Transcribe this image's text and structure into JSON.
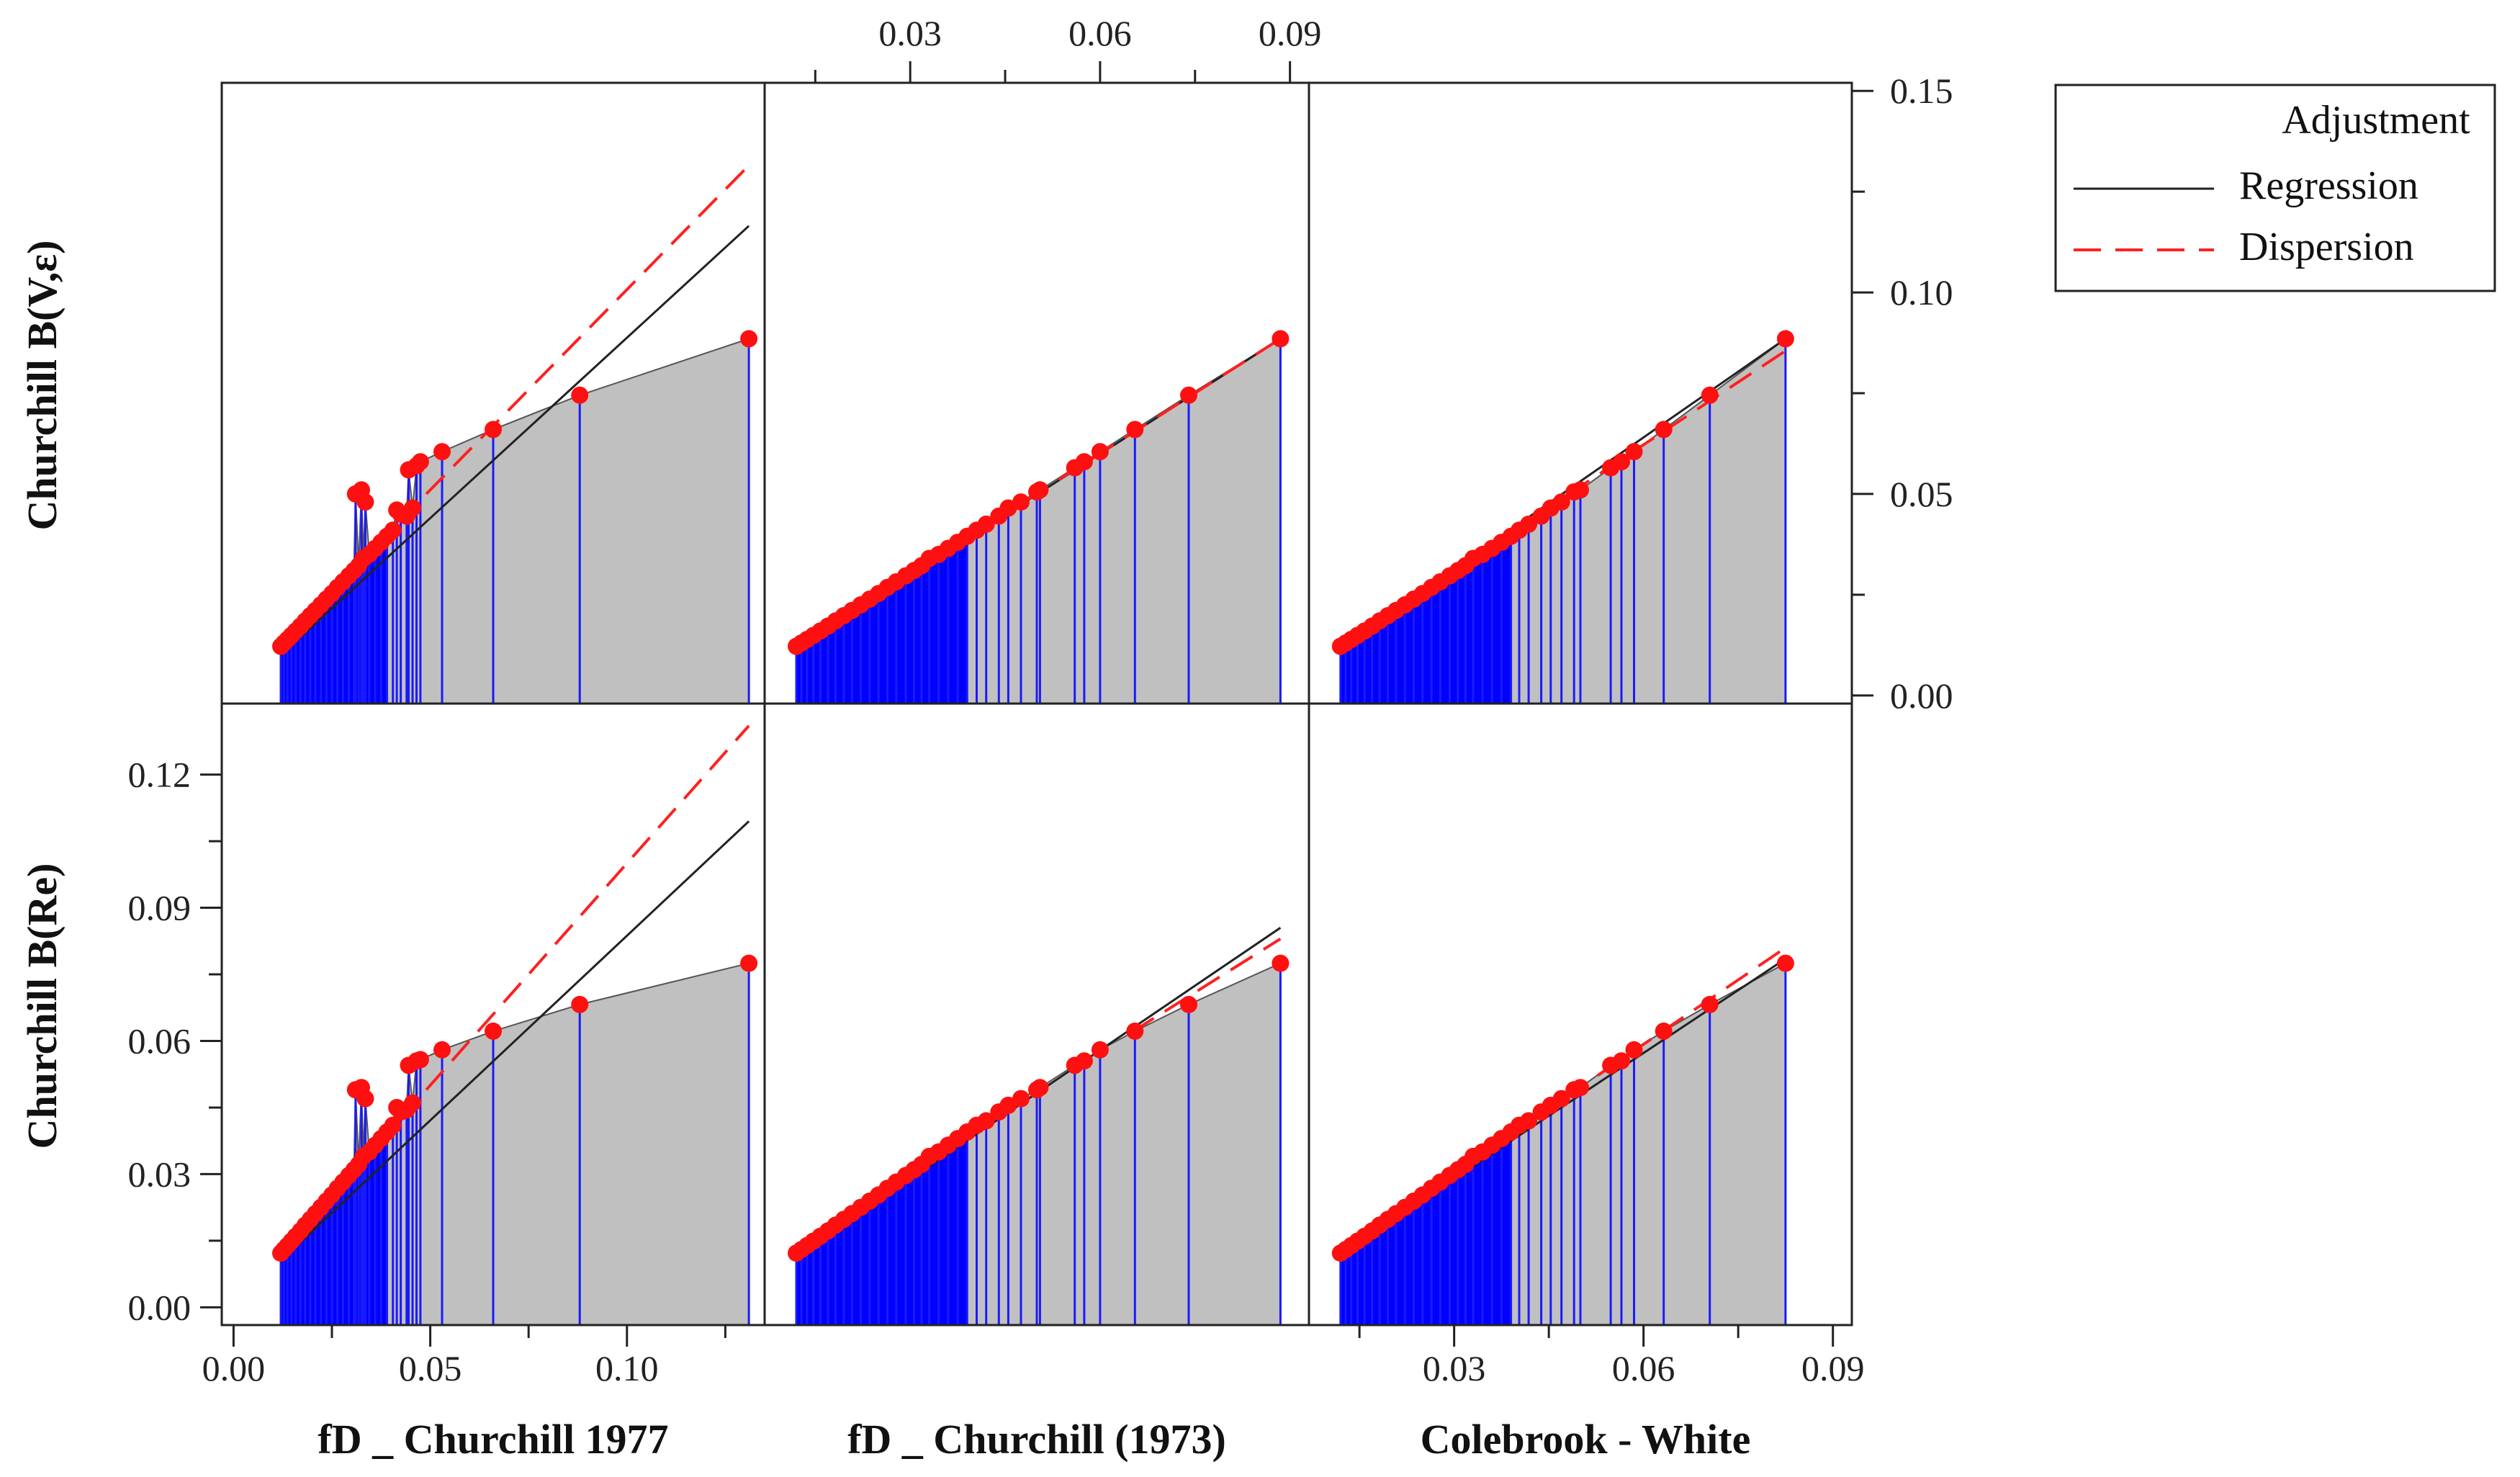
{
  "chart_data": {
    "type": "scatter-matrix",
    "description_series": [
      "Adjustment",
      "Regression",
      "Dispersion"
    ],
    "legend": {
      "placement": "top-right",
      "entries": [
        {
          "label": "Adjustment",
          "kind": "area",
          "color": "#c0c0c0"
        },
        {
          "label": "Regression",
          "kind": "line",
          "color": "#222222"
        },
        {
          "label": "Dispersion",
          "kind": "dashed",
          "color": "#ff2020"
        }
      ]
    },
    "rows": [
      {
        "label": "Churchill B(V,ε)",
        "yticks": [
          "0.00",
          "0.05",
          "0.10",
          "0.15"
        ]
      },
      {
        "label": "Churchill B(Re)",
        "yticks": [
          "0.00",
          "0.03",
          "0.06",
          "0.09",
          "0.12"
        ]
      }
    ],
    "columns": [
      {
        "label": "fD _ Churchill 1977",
        "xticks": [
          "0.00",
          "0.05",
          "0.10"
        ]
      },
      {
        "label": "fD _ Churchill (1973)",
        "xticks": [
          "0.03",
          "0.06",
          "0.09"
        ]
      },
      {
        "label": "Colebrook - White",
        "xticks": [
          "0.03",
          "0.06",
          "0.09"
        ]
      }
    ],
    "axis_ranges": {
      "col1_x": [
        -0.003,
        0.135
      ],
      "col2_x": [
        0.007,
        0.093
      ],
      "col3_x": [
        0.007,
        0.093
      ],
      "row1_y": [
        -0.002,
        0.152
      ],
      "row2_y": [
        -0.004,
        0.136
      ]
    },
    "panels": [
      {
        "row": 1,
        "col": 1,
        "points": [
          [
            0.012,
            0.0122
          ],
          [
            0.0128,
            0.013
          ],
          [
            0.0137,
            0.0139
          ],
          [
            0.0147,
            0.0149
          ],
          [
            0.0158,
            0.016
          ],
          [
            0.017,
            0.0172
          ],
          [
            0.0182,
            0.0185
          ],
          [
            0.0195,
            0.0198
          ],
          [
            0.0208,
            0.0211
          ],
          [
            0.0222,
            0.0225
          ],
          [
            0.0236,
            0.0239
          ],
          [
            0.025,
            0.0253
          ],
          [
            0.0264,
            0.0268
          ],
          [
            0.0278,
            0.0282
          ],
          [
            0.0293,
            0.0297
          ],
          [
            0.0306,
            0.031
          ],
          [
            0.031,
            0.05
          ],
          [
            0.0318,
            0.0322
          ],
          [
            0.0325,
            0.051
          ],
          [
            0.033,
            0.034
          ],
          [
            0.0335,
            0.048
          ],
          [
            0.0345,
            0.035
          ],
          [
            0.036,
            0.0365
          ],
          [
            0.0375,
            0.038
          ],
          [
            0.039,
            0.0395
          ],
          [
            0.0405,
            0.041
          ],
          [
            0.0415,
            0.046
          ],
          [
            0.0425,
            0.045
          ],
          [
            0.044,
            0.0445
          ],
          [
            0.0445,
            0.056
          ],
          [
            0.0455,
            0.0465
          ],
          [
            0.0465,
            0.057
          ],
          [
            0.0475,
            0.058
          ],
          [
            0.053,
            0.0605
          ],
          [
            0.066,
            0.066
          ],
          [
            0.088,
            0.0745
          ],
          [
            0.131,
            0.0885
          ]
        ],
        "regression": [
          [
            0.012,
            0.01
          ],
          [
            0.131,
            0.1165
          ]
        ],
        "dispersion": [
          [
            0.049,
            0.05
          ],
          [
            0.131,
            0.1315
          ]
        ]
      },
      {
        "row": 1,
        "col": 2,
        "points": [
          [
            0.012,
            0.0122
          ],
          [
            0.0128,
            0.013
          ],
          [
            0.0137,
            0.0139
          ],
          [
            0.0147,
            0.0149
          ],
          [
            0.0158,
            0.016
          ],
          [
            0.017,
            0.0172
          ],
          [
            0.0182,
            0.0185
          ],
          [
            0.0195,
            0.0198
          ],
          [
            0.0208,
            0.0211
          ],
          [
            0.0222,
            0.0225
          ],
          [
            0.0236,
            0.0239
          ],
          [
            0.025,
            0.0253
          ],
          [
            0.0264,
            0.0268
          ],
          [
            0.0278,
            0.0282
          ],
          [
            0.0293,
            0.0297
          ],
          [
            0.0306,
            0.031
          ],
          [
            0.0318,
            0.0322
          ],
          [
            0.033,
            0.034
          ],
          [
            0.0345,
            0.035
          ],
          [
            0.036,
            0.0365
          ],
          [
            0.0375,
            0.038
          ],
          [
            0.039,
            0.0395
          ],
          [
            0.0405,
            0.041
          ],
          [
            0.042,
            0.0425
          ],
          [
            0.044,
            0.0445
          ],
          [
            0.0455,
            0.0465
          ],
          [
            0.0475,
            0.048
          ],
          [
            0.05,
            0.0505
          ],
          [
            0.0505,
            0.051
          ],
          [
            0.056,
            0.0565
          ],
          [
            0.0575,
            0.058
          ],
          [
            0.06,
            0.0605
          ],
          [
            0.0655,
            0.066
          ],
          [
            0.074,
            0.0745
          ],
          [
            0.0885,
            0.0885
          ]
        ],
        "regression": [
          [
            0.012,
            0.0118
          ],
          [
            0.0885,
            0.0885
          ]
        ],
        "dispersion": [
          [
            0.012,
            0.0122
          ],
          [
            0.0885,
            0.0885
          ]
        ]
      },
      {
        "row": 1,
        "col": 3,
        "points": [
          [
            0.012,
            0.0122
          ],
          [
            0.0128,
            0.013
          ],
          [
            0.0137,
            0.0139
          ],
          [
            0.0147,
            0.0149
          ],
          [
            0.0158,
            0.016
          ],
          [
            0.017,
            0.0172
          ],
          [
            0.0182,
            0.0185
          ],
          [
            0.0195,
            0.0198
          ],
          [
            0.0208,
            0.0211
          ],
          [
            0.0222,
            0.0225
          ],
          [
            0.0236,
            0.0239
          ],
          [
            0.025,
            0.0253
          ],
          [
            0.0264,
            0.0268
          ],
          [
            0.0278,
            0.0282
          ],
          [
            0.0293,
            0.0297
          ],
          [
            0.0306,
            0.031
          ],
          [
            0.0318,
            0.0322
          ],
          [
            0.033,
            0.034
          ],
          [
            0.0345,
            0.035
          ],
          [
            0.036,
            0.0365
          ],
          [
            0.0375,
            0.038
          ],
          [
            0.039,
            0.0395
          ],
          [
            0.0403,
            0.041
          ],
          [
            0.0418,
            0.0425
          ],
          [
            0.0438,
            0.0445
          ],
          [
            0.0453,
            0.0465
          ],
          [
            0.047,
            0.048
          ],
          [
            0.049,
            0.0505
          ],
          [
            0.05,
            0.051
          ],
          [
            0.0548,
            0.0565
          ],
          [
            0.0565,
            0.058
          ],
          [
            0.0585,
            0.0605
          ],
          [
            0.0632,
            0.066
          ],
          [
            0.0705,
            0.0745
          ],
          [
            0.0825,
            0.0885
          ]
        ],
        "regression": [
          [
            0.012,
            0.0118
          ],
          [
            0.0825,
            0.0885
          ]
        ],
        "dispersion": [
          [
            0.012,
            0.0125
          ],
          [
            0.0825,
            0.0855
          ]
        ]
      },
      {
        "row": 2,
        "col": 1,
        "points": [
          [
            0.012,
            0.0122
          ],
          [
            0.0128,
            0.013
          ],
          [
            0.0137,
            0.0139
          ],
          [
            0.0147,
            0.0149
          ],
          [
            0.0158,
            0.016
          ],
          [
            0.017,
            0.0172
          ],
          [
            0.0182,
            0.0185
          ],
          [
            0.0195,
            0.0198
          ],
          [
            0.0208,
            0.0211
          ],
          [
            0.0222,
            0.0225
          ],
          [
            0.0236,
            0.0239
          ],
          [
            0.025,
            0.0253
          ],
          [
            0.0264,
            0.0268
          ],
          [
            0.0278,
            0.0282
          ],
          [
            0.0293,
            0.0297
          ],
          [
            0.0306,
            0.031
          ],
          [
            0.031,
            0.049
          ],
          [
            0.0318,
            0.0322
          ],
          [
            0.0325,
            0.0495
          ],
          [
            0.033,
            0.034
          ],
          [
            0.0335,
            0.047
          ],
          [
            0.0345,
            0.035
          ],
          [
            0.036,
            0.0365
          ],
          [
            0.0375,
            0.038
          ],
          [
            0.039,
            0.0395
          ],
          [
            0.0405,
            0.041
          ],
          [
            0.0415,
            0.045
          ],
          [
            0.0425,
            0.044
          ],
          [
            0.044,
            0.0445
          ],
          [
            0.0445,
            0.0545
          ],
          [
            0.0455,
            0.046
          ],
          [
            0.0465,
            0.0555
          ],
          [
            0.0475,
            0.0558
          ],
          [
            0.053,
            0.058
          ],
          [
            0.066,
            0.0622
          ],
          [
            0.088,
            0.0682
          ],
          [
            0.131,
            0.0775
          ]
        ],
        "regression": [
          [
            0.012,
            0.0105
          ],
          [
            0.131,
            0.1095
          ]
        ],
        "dispersion": [
          [
            0.049,
            0.049
          ],
          [
            0.131,
            0.131
          ]
        ]
      },
      {
        "row": 2,
        "col": 2,
        "points": [
          [
            0.012,
            0.0122
          ],
          [
            0.0128,
            0.013
          ],
          [
            0.0137,
            0.0139
          ],
          [
            0.0147,
            0.0149
          ],
          [
            0.0158,
            0.016
          ],
          [
            0.017,
            0.0172
          ],
          [
            0.0182,
            0.0185
          ],
          [
            0.0195,
            0.0198
          ],
          [
            0.0208,
            0.0211
          ],
          [
            0.0222,
            0.0225
          ],
          [
            0.0236,
            0.0239
          ],
          [
            0.025,
            0.0253
          ],
          [
            0.0264,
            0.0268
          ],
          [
            0.0278,
            0.0282
          ],
          [
            0.0293,
            0.0297
          ],
          [
            0.0306,
            0.031
          ],
          [
            0.0318,
            0.0322
          ],
          [
            0.033,
            0.034
          ],
          [
            0.0345,
            0.035
          ],
          [
            0.036,
            0.0365
          ],
          [
            0.0375,
            0.038
          ],
          [
            0.039,
            0.0395
          ],
          [
            0.0405,
            0.041
          ],
          [
            0.042,
            0.042
          ],
          [
            0.044,
            0.044
          ],
          [
            0.0455,
            0.0455
          ],
          [
            0.0475,
            0.047
          ],
          [
            0.05,
            0.049
          ],
          [
            0.0505,
            0.0495
          ],
          [
            0.056,
            0.0545
          ],
          [
            0.0575,
            0.0555
          ],
          [
            0.06,
            0.058
          ],
          [
            0.0655,
            0.0622
          ],
          [
            0.074,
            0.0682
          ],
          [
            0.0885,
            0.0775
          ]
        ],
        "regression": [
          [
            0.012,
            0.0115
          ],
          [
            0.0885,
            0.0855
          ]
        ],
        "dispersion": [
          [
            0.065,
            0.062
          ],
          [
            0.0885,
            0.083
          ]
        ]
      },
      {
        "row": 2,
        "col": 3,
        "points": [
          [
            0.012,
            0.0122
          ],
          [
            0.0128,
            0.013
          ],
          [
            0.0137,
            0.0139
          ],
          [
            0.0147,
            0.0149
          ],
          [
            0.0158,
            0.016
          ],
          [
            0.017,
            0.0172
          ],
          [
            0.0182,
            0.0185
          ],
          [
            0.0195,
            0.0198
          ],
          [
            0.0208,
            0.0211
          ],
          [
            0.0222,
            0.0225
          ],
          [
            0.0236,
            0.0239
          ],
          [
            0.025,
            0.0253
          ],
          [
            0.0264,
            0.0268
          ],
          [
            0.0278,
            0.0282
          ],
          [
            0.0293,
            0.0297
          ],
          [
            0.0306,
            0.031
          ],
          [
            0.0318,
            0.0322
          ],
          [
            0.033,
            0.034
          ],
          [
            0.0345,
            0.035
          ],
          [
            0.036,
            0.0365
          ],
          [
            0.0375,
            0.038
          ],
          [
            0.039,
            0.0395
          ],
          [
            0.0403,
            0.041
          ],
          [
            0.0418,
            0.042
          ],
          [
            0.0438,
            0.044
          ],
          [
            0.0453,
            0.0455
          ],
          [
            0.047,
            0.047
          ],
          [
            0.049,
            0.049
          ],
          [
            0.05,
            0.0495
          ],
          [
            0.0548,
            0.0545
          ],
          [
            0.0565,
            0.0555
          ],
          [
            0.0585,
            0.058
          ],
          [
            0.0632,
            0.0622
          ],
          [
            0.0705,
            0.0682
          ],
          [
            0.0825,
            0.0775
          ]
        ],
        "regression": [
          [
            0.012,
            0.012
          ],
          [
            0.0825,
            0.0785
          ]
        ],
        "dispersion": [
          [
            0.012,
            0.0128
          ],
          [
            0.0825,
            0.081
          ]
        ]
      }
    ]
  }
}
